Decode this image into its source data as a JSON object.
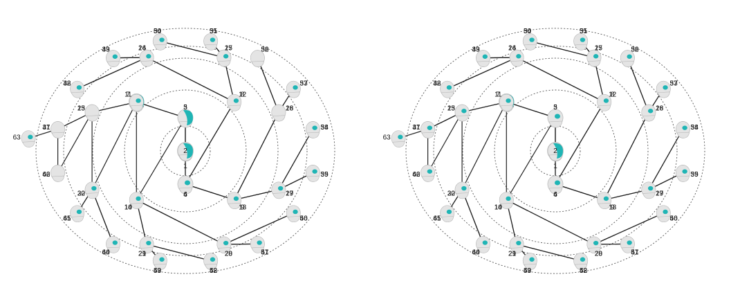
{
  "diagram": {
    "panels": [
      {
        "name": "left",
        "highlight_color": "#1fb5b5",
        "nodes": [
          {
            "id": 1,
            "level": 0,
            "act": 3
          },
          {
            "id": 2,
            "level": 1,
            "act": 2
          },
          {
            "id": 3,
            "level": 1,
            "act": 2
          },
          {
            "id": 4,
            "level": 2,
            "act": 2
          },
          {
            "id": 5,
            "level": 2,
            "act": 2
          },
          {
            "id": 6,
            "level": 2,
            "act": 1
          },
          {
            "id": 7,
            "level": 2,
            "act": 2
          },
          {
            "id": 8,
            "level": 3,
            "act": 1
          },
          {
            "id": 9,
            "level": 3,
            "act": 1
          },
          {
            "id": 10,
            "level": 3,
            "act": 1
          },
          {
            "id": 11,
            "level": 3,
            "act": 1
          },
          {
            "id": 12,
            "level": 3,
            "act": 1
          },
          {
            "id": 13,
            "level": 3,
            "act": 0
          },
          {
            "id": 14,
            "level": 3,
            "act": 2
          },
          {
            "id": 15,
            "level": 3,
            "act": 2
          },
          {
            "id": 16,
            "level": 4,
            "act": 1
          },
          {
            "id": 17,
            "level": 4,
            "act": 0
          },
          {
            "id": 18,
            "level": 4,
            "act": 0
          },
          {
            "id": 19,
            "level": 4,
            "act": 1
          },
          {
            "id": 20,
            "level": 4,
            "act": 1
          },
          {
            "id": 21,
            "level": 4,
            "act": 1
          },
          {
            "id": 22,
            "level": 4,
            "act": 1
          },
          {
            "id": 23,
            "level": 4,
            "act": 0
          },
          {
            "id": 24,
            "level": 4,
            "act": 1
          },
          {
            "id": 25,
            "level": 4,
            "act": 1
          },
          {
            "id": 26,
            "level": 4,
            "act": 0
          },
          {
            "id": 27,
            "level": 4,
            "act": 1
          },
          {
            "id": 28,
            "level": 4,
            "act": 1
          },
          {
            "id": 29,
            "level": 4,
            "act": 1
          },
          {
            "id": 30,
            "level": 4,
            "act": 1
          },
          {
            "id": 31,
            "level": 4,
            "act": 1
          },
          {
            "id": 32,
            "level": 5,
            "act": 0
          },
          {
            "id": 33,
            "level": 5,
            "act": 0
          },
          {
            "id": 34,
            "level": 5,
            "act": 1
          },
          {
            "id": 35,
            "level": 5,
            "act": 1
          },
          {
            "id": 36,
            "level": 5,
            "act": 0
          },
          {
            "id": 37,
            "level": 5,
            "act": 0
          },
          {
            "id": 38,
            "level": 5,
            "act": 1
          },
          {
            "id": 39,
            "level": 5,
            "act": 1
          },
          {
            "id": 40,
            "level": 5,
            "act": 1
          },
          {
            "id": 41,
            "level": 5,
            "act": 0
          },
          {
            "id": 42,
            "level": 5,
            "act": 1
          },
          {
            "id": 43,
            "level": 5,
            "act": 1
          },
          {
            "id": 44,
            "level": 5,
            "act": 1
          },
          {
            "id": 45,
            "level": 5,
            "act": 1
          },
          {
            "id": 46,
            "level": 5,
            "act": 0
          },
          {
            "id": 47,
            "level": 5,
            "act": 0
          },
          {
            "id": 48,
            "level": 5,
            "act": 1
          },
          {
            "id": 49,
            "level": 5,
            "act": 1
          },
          {
            "id": 50,
            "level": 5,
            "act": 1
          },
          {
            "id": 51,
            "level": 5,
            "act": 1
          },
          {
            "id": 52,
            "level": 5,
            "act": 1
          },
          {
            "id": 53,
            "level": 5,
            "act": 1
          },
          {
            "id": 54,
            "level": 5,
            "act": 0
          },
          {
            "id": 55,
            "level": 5,
            "act": 1
          },
          {
            "id": 56,
            "level": 5,
            "act": 1
          },
          {
            "id": 57,
            "level": 5,
            "act": 1
          },
          {
            "id": 58,
            "level": 5,
            "act": 1
          },
          {
            "id": 59,
            "level": 5,
            "act": 1
          },
          {
            "id": 60,
            "level": 5,
            "act": 1
          },
          {
            "id": 61,
            "level": 5,
            "act": 1
          },
          {
            "id": 62,
            "level": 5,
            "act": 1
          },
          {
            "id": 63,
            "level": 5,
            "act": 1
          }
        ]
      },
      {
        "name": "right",
        "highlight_color": "#1fb5b5",
        "nodes": [
          {
            "id": 1,
            "level": 0,
            "act": 3
          },
          {
            "id": 2,
            "level": 1,
            "act": 2
          },
          {
            "id": 3,
            "level": 1,
            "act": 2
          },
          {
            "id": 4,
            "level": 2,
            "act": 2
          },
          {
            "id": 5,
            "level": 2,
            "act": 1
          },
          {
            "id": 6,
            "level": 2,
            "act": 1
          },
          {
            "id": 7,
            "level": 2,
            "act": 2
          },
          {
            "id": 8,
            "level": 3,
            "act": 2
          },
          {
            "id": 9,
            "level": 3,
            "act": 1
          },
          {
            "id": 10,
            "level": 3,
            "act": 1
          },
          {
            "id": 11,
            "level": 3,
            "act": 1
          },
          {
            "id": 12,
            "level": 3,
            "act": 1
          },
          {
            "id": 13,
            "level": 3,
            "act": 1
          },
          {
            "id": 14,
            "level": 3,
            "act": 1
          },
          {
            "id": 15,
            "level": 3,
            "act": 2
          },
          {
            "id": 16,
            "level": 4,
            "act": 1
          },
          {
            "id": 17,
            "level": 4,
            "act": 1
          },
          {
            "id": 18,
            "level": 4,
            "act": 1
          },
          {
            "id": 19,
            "level": 4,
            "act": 1
          },
          {
            "id": 20,
            "level": 4,
            "act": 1
          },
          {
            "id": 21,
            "level": 4,
            "act": 1
          },
          {
            "id": 22,
            "level": 4,
            "act": 1
          },
          {
            "id": 23,
            "level": 4,
            "act": 1
          },
          {
            "id": 24,
            "level": 4,
            "act": 1
          },
          {
            "id": 25,
            "level": 4,
            "act": 1
          },
          {
            "id": 26,
            "level": 4,
            "act": 1
          },
          {
            "id": 27,
            "level": 4,
            "act": 1
          },
          {
            "id": 28,
            "level": 4,
            "act": 1
          },
          {
            "id": 29,
            "level": 4,
            "act": 1
          },
          {
            "id": 30,
            "level": 4,
            "act": 1
          },
          {
            "id": 31,
            "level": 4,
            "act": 2
          },
          {
            "id": 32,
            "level": 5,
            "act": 1
          },
          {
            "id": 33,
            "level": 5,
            "act": 1
          },
          {
            "id": 34,
            "level": 5,
            "act": 1
          },
          {
            "id": 35,
            "level": 5,
            "act": 1
          },
          {
            "id": 36,
            "level": 5,
            "act": 1
          },
          {
            "id": 37,
            "level": 5,
            "act": 1
          },
          {
            "id": 38,
            "level": 5,
            "act": 1
          },
          {
            "id": 39,
            "level": 5,
            "act": 1
          },
          {
            "id": 40,
            "level": 5,
            "act": 1
          },
          {
            "id": 41,
            "level": 5,
            "act": 1
          },
          {
            "id": 42,
            "level": 5,
            "act": 1
          },
          {
            "id": 43,
            "level": 5,
            "act": 1
          },
          {
            "id": 44,
            "level": 5,
            "act": 1
          },
          {
            "id": 45,
            "level": 5,
            "act": 1
          },
          {
            "id": 46,
            "level": 5,
            "act": 1
          },
          {
            "id": 47,
            "level": 5,
            "act": 1
          },
          {
            "id": 48,
            "level": 5,
            "act": 1
          },
          {
            "id": 49,
            "level": 5,
            "act": 1
          },
          {
            "id": 50,
            "level": 5,
            "act": 1
          },
          {
            "id": 51,
            "level": 5,
            "act": 1
          },
          {
            "id": 52,
            "level": 5,
            "act": 1
          },
          {
            "id": 53,
            "level": 5,
            "act": 1
          },
          {
            "id": 54,
            "level": 5,
            "act": 1
          },
          {
            "id": 55,
            "level": 5,
            "act": 1
          },
          {
            "id": 56,
            "level": 5,
            "act": 1
          },
          {
            "id": 57,
            "level": 5,
            "act": 1
          },
          {
            "id": 58,
            "level": 5,
            "act": 1
          },
          {
            "id": 59,
            "level": 5,
            "act": 1
          },
          {
            "id": 60,
            "level": 5,
            "act": 1
          },
          {
            "id": 61,
            "level": 5,
            "act": 1
          },
          {
            "id": 62,
            "level": 5,
            "act": 1
          },
          {
            "id": 63,
            "level": 5,
            "act": 1
          }
        ]
      }
    ]
  }
}
